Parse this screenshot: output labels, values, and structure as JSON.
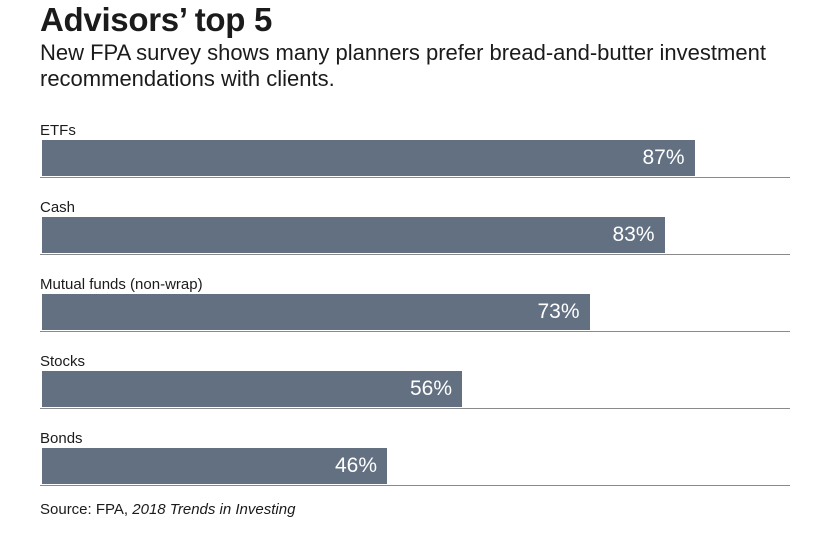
{
  "header": {
    "title": "Advisors’ top 5",
    "subtitle": "New FPA survey shows many planners prefer bread-and-butter investment recommendations with clients."
  },
  "source": {
    "prefix": "Source: FPA, ",
    "publication": "2018 Trends in Investing"
  },
  "colors": {
    "bar": "#627082",
    "bar_text": "#ffffff",
    "baseline": "#8a8a8a"
  },
  "chart_data": {
    "type": "bar",
    "orientation": "horizontal",
    "title": "Advisors’ top 5",
    "categories": [
      "ETFs",
      "Cash",
      "Mutual funds (non-wrap)",
      "Stocks",
      "Bonds"
    ],
    "values": [
      87,
      83,
      73,
      56,
      46
    ],
    "value_labels": [
      "87%",
      "83%",
      "73%",
      "56%",
      "46%"
    ],
    "xlim": [
      0,
      100
    ],
    "grid": false,
    "legend": "none"
  }
}
